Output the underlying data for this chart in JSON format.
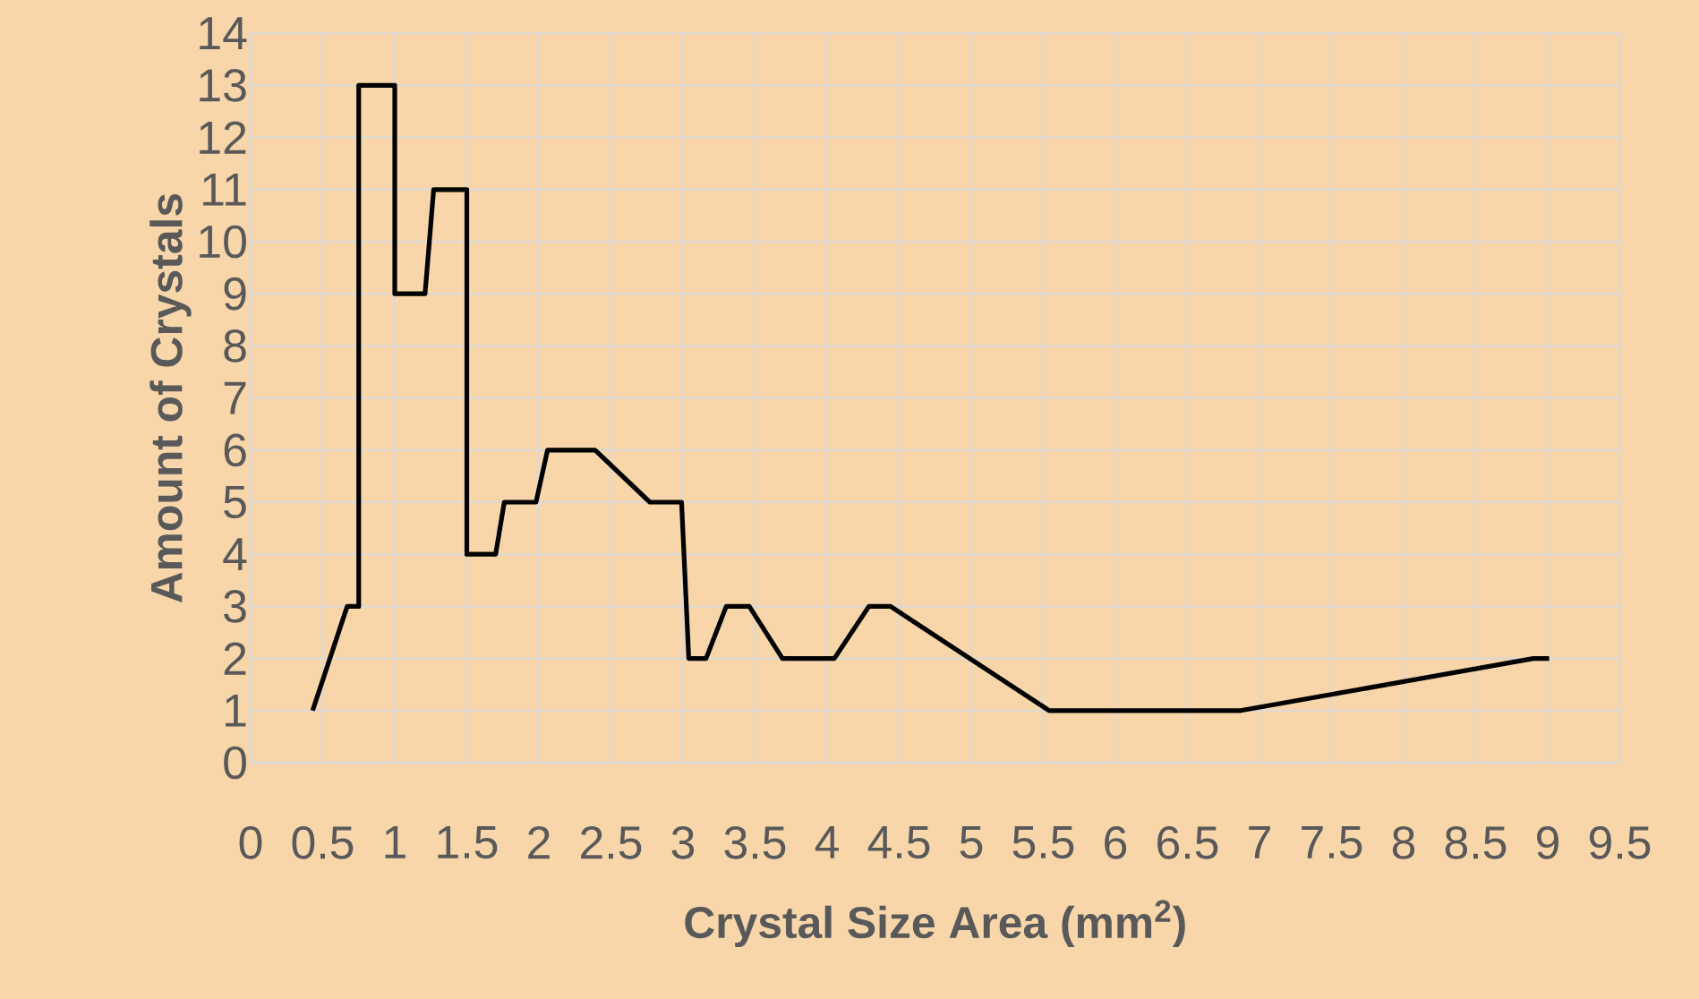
{
  "chart_data": {
    "type": "line",
    "xlabel": "Crystal Size Area (mm$^{2}$)",
    "ylabel": "Amount of Crystals",
    "x": [
      0.43,
      0.67,
      0.75,
      0.75,
      1.0,
      1.0,
      1.21,
      1.27,
      1.5,
      1.5,
      1.7,
      1.76,
      1.98,
      2.06,
      2.39,
      2.77,
      2.99,
      3.04,
      3.16,
      3.3,
      3.46,
      3.69,
      4.05,
      4.29,
      4.44,
      5.54,
      6.33,
      6.87,
      8.9,
      9.01
    ],
    "series": [
      {
        "color": "#000000",
        "values": [
          1,
          3,
          3,
          13,
          13,
          9,
          9,
          11,
          11,
          4,
          4,
          5,
          5,
          6,
          6,
          5,
          5,
          2,
          2,
          3,
          3,
          2,
          2,
          3,
          3,
          1,
          1,
          1,
          2,
          2
        ]
      }
    ],
    "xlim": [
      0,
      9.5
    ],
    "xticks": [
      0,
      0.5,
      1,
      1.5,
      2,
      2.5,
      3,
      3.5,
      4,
      4.5,
      5,
      5.5,
      6,
      6.5,
      7,
      7.5,
      8,
      8.5,
      9,
      9.5
    ],
    "ylim": [
      0,
      14
    ],
    "yticks": [
      0,
      1,
      2,
      3,
      4,
      5,
      6,
      7,
      8,
      9,
      10,
      11,
      12,
      13,
      14
    ],
    "grid": true,
    "marker": "none",
    "line_style": "solid"
  }
}
